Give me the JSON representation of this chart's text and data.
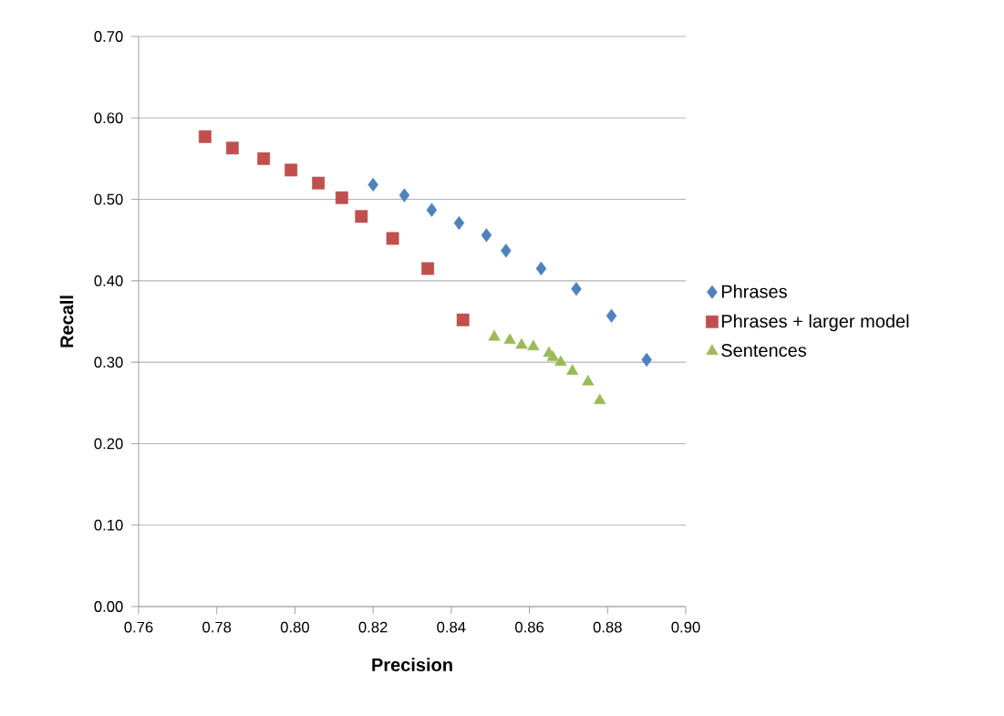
{
  "chart_data": {
    "type": "scatter",
    "xlabel": "Precision",
    "ylabel": "Recall",
    "xlim": [
      0.76,
      0.9
    ],
    "xticks": [
      {
        "value": 0.76,
        "label": "0.76"
      },
      {
        "value": 0.78,
        "label": "0.78"
      },
      {
        "value": 0.8,
        "label": "0.80"
      },
      {
        "value": 0.82,
        "label": "0.82"
      },
      {
        "value": 0.84,
        "label": "0.84"
      },
      {
        "value": 0.86,
        "label": "0.86"
      },
      {
        "value": 0.88,
        "label": "0.88"
      },
      {
        "value": 0.9,
        "label": "0.90"
      }
    ],
    "ylim": [
      0.0,
      0.7
    ],
    "yticks": [
      {
        "value": 0.0,
        "label": "0.00"
      },
      {
        "value": 0.1,
        "label": "0.10"
      },
      {
        "value": 0.2,
        "label": "0.20"
      },
      {
        "value": 0.3,
        "label": "0.30"
      },
      {
        "value": 0.4,
        "label": "0.40"
      },
      {
        "value": 0.5,
        "label": "0.50"
      },
      {
        "value": 0.6,
        "label": "0.60"
      },
      {
        "value": 0.7,
        "label": "0.70"
      }
    ],
    "grid": "y",
    "legend": "right",
    "series": [
      {
        "name": "Phrases",
        "color": "#4f81bd",
        "marker": "diamond",
        "x": [
          0.82,
          0.828,
          0.835,
          0.842,
          0.849,
          0.854,
          0.863,
          0.872,
          0.881,
          0.89
        ],
        "values": [
          0.518,
          0.505,
          0.487,
          0.471,
          0.456,
          0.437,
          0.415,
          0.39,
          0.357,
          0.303
        ]
      },
      {
        "name": "Phrases + larger model",
        "color": "#c0504d",
        "marker": "square",
        "x": [
          0.777,
          0.784,
          0.792,
          0.799,
          0.806,
          0.812,
          0.817,
          0.825,
          0.834,
          0.843
        ],
        "values": [
          0.577,
          0.563,
          0.55,
          0.536,
          0.52,
          0.502,
          0.479,
          0.452,
          0.415,
          0.352
        ]
      },
      {
        "name": "Sentences",
        "color": "#9bbb59",
        "marker": "triangle",
        "x": [
          0.851,
          0.855,
          0.858,
          0.861,
          0.865,
          0.866,
          0.868,
          0.871,
          0.875,
          0.878
        ],
        "values": [
          0.331,
          0.327,
          0.321,
          0.319,
          0.311,
          0.306,
          0.3,
          0.289,
          0.276,
          0.253
        ]
      }
    ]
  }
}
